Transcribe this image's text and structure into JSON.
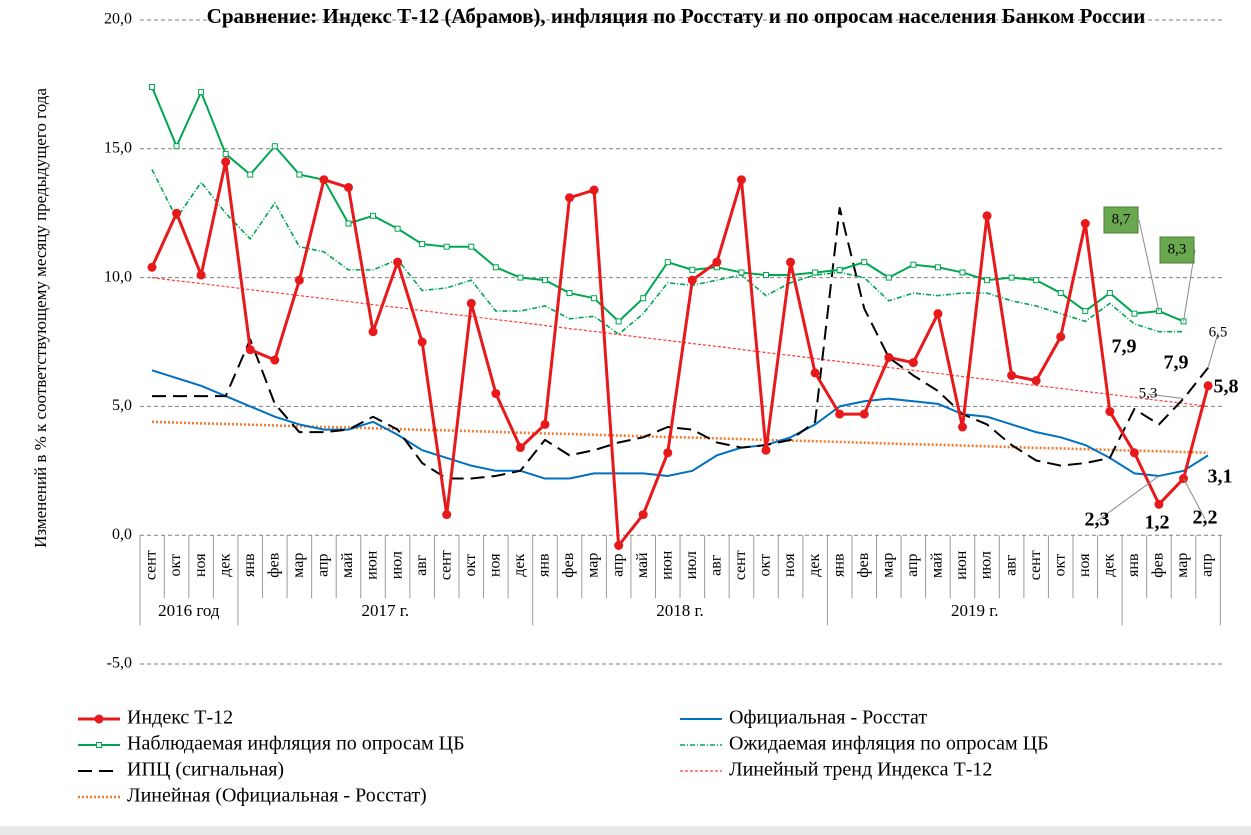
{
  "chart_data": {
    "type": "line",
    "title": "Сравнение: Индекс Т-12 (Абрамов), инфляция по Росстату и по опросам населения Банком России",
    "y_label": "Изменений в % к соответствующему месяцу предыдущего года",
    "categories": [
      "сент",
      "окт",
      "ноя",
      "дек",
      "янв",
      "фев",
      "мар",
      "апр",
      "май",
      "июн",
      "июл",
      "авг",
      "сент",
      "окт",
      "ноя",
      "дек",
      "янв",
      "фев",
      "мар",
      "апр",
      "май",
      "июн",
      "июл",
      "авг",
      "сент",
      "окт",
      "ноя",
      "дек",
      "янв",
      "фев",
      "мар",
      "апр",
      "май",
      "июн",
      "июл",
      "авг",
      "сент",
      "окт",
      "ноя",
      "дек",
      "янв",
      "фев",
      "мар",
      "апр"
    ],
    "category_groups": [
      "2016 год",
      "2016 год",
      "2016 год",
      "2016 год",
      "2017 г.",
      "2017 г.",
      "2017 г.",
      "2017 г.",
      "2017 г.",
      "2017 г.",
      "2017 г.",
      "2017 г.",
      "2017 г.",
      "2017 г.",
      "2017 г.",
      "2017 г.",
      "2018 г.",
      "2018 г.",
      "2018 г.",
      "2018 г.",
      "2018 г.",
      "2018 г.",
      "2018 г.",
      "2018 г.",
      "2018 г.",
      "2018 г.",
      "2018 г.",
      "2018 г.",
      "2019 г.",
      "2019 г.",
      "2019 г.",
      "2019 г.",
      "2019 г.",
      "2019 г.",
      "2019 г.",
      "2019 г.",
      "2019 г.",
      "2019 г.",
      "2019 г.",
      "2019 г.",
      null,
      null,
      null,
      null
    ],
    "ylim": [
      -5,
      20
    ],
    "yticks": [
      {
        "value": -5,
        "label": "-5,0"
      },
      {
        "value": 0,
        "label": "0,0"
      },
      {
        "value": 5,
        "label": "5,0"
      },
      {
        "value": 10,
        "label": "10,0"
      },
      {
        "value": 15,
        "label": "15,0"
      },
      {
        "value": 20,
        "label": "20,0"
      }
    ],
    "grid": true,
    "legend": "bottom",
    "series": [
      {
        "name": "Индекс Т-12",
        "color": "#e8191b",
        "style": "solid",
        "marker": "circle",
        "values": [
          10.4,
          12.5,
          10.1,
          14.5,
          7.2,
          6.8,
          9.9,
          13.8,
          13.5,
          7.9,
          10.6,
          7.5,
          0.8,
          9.0,
          5.5,
          3.4,
          4.3,
          13.1,
          13.4,
          -0.4,
          0.8,
          3.2,
          9.9,
          10.6,
          13.8,
          3.3,
          10.6,
          6.3,
          4.7,
          4.7,
          6.9,
          6.7,
          8.6,
          4.2,
          12.4,
          6.2,
          6.0,
          7.7,
          12.1,
          4.8,
          3.2,
          1.2,
          2.2,
          5.8
        ],
        "value_labels": [
          null,
          null,
          null,
          null,
          null,
          null,
          null,
          null,
          null,
          null,
          null,
          null,
          null,
          null,
          null,
          null,
          null,
          null,
          null,
          null,
          null,
          null,
          null,
          null,
          null,
          null,
          null,
          null,
          null,
          null,
          null,
          null,
          null,
          null,
          null,
          null,
          null,
          null,
          null,
          null,
          null,
          "1,2",
          "2,2",
          "5,8"
        ]
      },
      {
        "name": "Официальная - Росстат",
        "color": "#0070c0",
        "style": "solid",
        "marker": "none",
        "values": [
          6.4,
          6.1,
          5.8,
          5.4,
          5.0,
          4.6,
          4.3,
          4.1,
          4.1,
          4.4,
          3.9,
          3.3,
          3.0,
          2.7,
          2.5,
          2.5,
          2.2,
          2.2,
          2.4,
          2.4,
          2.4,
          2.3,
          2.5,
          3.1,
          3.4,
          3.5,
          3.8,
          4.3,
          5.0,
          5.2,
          5.3,
          5.2,
          5.1,
          4.7,
          4.6,
          4.3,
          4.0,
          3.8,
          3.5,
          3.0,
          2.4,
          2.3,
          2.5,
          3.1
        ],
        "value_labels": [
          null,
          null,
          null,
          null,
          null,
          null,
          null,
          null,
          null,
          null,
          null,
          null,
          null,
          null,
          null,
          null,
          null,
          null,
          null,
          null,
          null,
          null,
          null,
          null,
          null,
          null,
          null,
          null,
          null,
          null,
          null,
          null,
          null,
          null,
          null,
          null,
          null,
          null,
          null,
          null,
          null,
          "2,3",
          null,
          "3,1"
        ]
      },
      {
        "name": "Наблюдаемая инфляция по опросам ЦБ",
        "color": "#00a650",
        "style": "solid",
        "marker": "square",
        "values": [
          17.4,
          15.1,
          17.2,
          14.8,
          14.0,
          15.1,
          14.0,
          13.8,
          12.1,
          12.4,
          11.9,
          11.3,
          11.2,
          11.2,
          10.4,
          10.0,
          9.9,
          9.4,
          9.2,
          8.3,
          9.2,
          10.6,
          10.3,
          10.4,
          10.2,
          10.1,
          10.1,
          10.2,
          10.3,
          10.6,
          10.0,
          10.5,
          10.4,
          10.2,
          9.9,
          10.0,
          9.9,
          9.4,
          8.7,
          9.4,
          8.6,
          8.7,
          8.3,
          null
        ],
        "value_labels": [
          null,
          null,
          null,
          null,
          null,
          null,
          null,
          null,
          null,
          null,
          null,
          null,
          null,
          null,
          null,
          null,
          null,
          null,
          null,
          null,
          null,
          null,
          null,
          null,
          null,
          null,
          null,
          null,
          null,
          null,
          null,
          null,
          null,
          null,
          null,
          null,
          null,
          null,
          null,
          null,
          null,
          "8,7",
          "8,3",
          null
        ]
      },
      {
        "name": "Ожидаемая инфляция по опросам ЦБ",
        "color": "#00a650",
        "style": "dashdot",
        "marker": "none",
        "values": [
          14.2,
          12.3,
          13.7,
          12.5,
          11.5,
          12.9,
          11.2,
          11.0,
          10.3,
          10.3,
          10.7,
          9.5,
          9.6,
          9.9,
          8.7,
          8.7,
          8.9,
          8.4,
          8.5,
          7.8,
          8.6,
          9.8,
          9.7,
          9.9,
          10.1,
          9.3,
          9.8,
          10.1,
          10.2,
          10.0,
          9.1,
          9.4,
          9.3,
          9.4,
          9.4,
          9.1,
          8.9,
          8.6,
          8.3,
          9.0,
          8.2,
          7.9,
          7.9,
          null
        ],
        "value_labels": [
          null,
          null,
          null,
          null,
          null,
          null,
          null,
          null,
          null,
          null,
          null,
          null,
          null,
          null,
          null,
          null,
          null,
          null,
          null,
          null,
          null,
          null,
          null,
          null,
          null,
          null,
          null,
          null,
          null,
          null,
          null,
          null,
          null,
          null,
          null,
          null,
          null,
          null,
          null,
          null,
          null,
          "7,9",
          "7,9",
          null
        ]
      },
      {
        "name": "ИПЦ (сигнальная)",
        "color": "#000000",
        "style": "longdash",
        "marker": "none",
        "values": [
          5.4,
          5.4,
          5.4,
          5.4,
          7.6,
          5.1,
          4.0,
          4.0,
          4.1,
          4.6,
          4.1,
          2.8,
          2.2,
          2.2,
          2.3,
          2.5,
          3.7,
          3.1,
          3.3,
          3.6,
          3.8,
          4.2,
          4.1,
          3.6,
          3.4,
          3.5,
          3.7,
          4.4,
          12.7,
          8.8,
          6.9,
          6.2,
          5.6,
          4.7,
          4.3,
          3.5,
          2.9,
          2.7,
          2.8,
          3.0,
          4.9,
          4.3,
          5.3,
          6.5
        ],
        "value_labels": [
          null,
          null,
          null,
          null,
          null,
          null,
          null,
          null,
          null,
          null,
          null,
          null,
          null,
          null,
          null,
          null,
          null,
          null,
          null,
          null,
          null,
          null,
          null,
          null,
          null,
          null,
          null,
          null,
          null,
          null,
          null,
          null,
          null,
          null,
          null,
          null,
          null,
          null,
          null,
          null,
          null,
          null,
          "5,3",
          "6,5"
        ]
      },
      {
        "name": "Линейный тренд Индекса Т-12",
        "color": "#ff3b3b",
        "style": "dashed",
        "marker": "none",
        "values": [
          10.0,
          9.88,
          9.77,
          9.65,
          9.53,
          9.42,
          9.3,
          9.19,
          9.07,
          8.95,
          8.84,
          8.72,
          8.6,
          8.49,
          8.37,
          8.26,
          8.14,
          8.02,
          7.91,
          7.79,
          7.67,
          7.56,
          7.44,
          7.33,
          7.21,
          7.09,
          6.98,
          6.86,
          6.74,
          6.63,
          6.51,
          6.4,
          6.28,
          6.16,
          6.05,
          5.93,
          5.81,
          5.7,
          5.58,
          5.47,
          5.35,
          5.23,
          5.12,
          5.0
        ]
      },
      {
        "name": "Линейная (Официальная - Росстат)",
        "color": "#ed7d31",
        "style": "dotted",
        "marker": "none",
        "values": [
          4.4,
          4.37,
          4.34,
          4.32,
          4.29,
          4.26,
          4.23,
          4.2,
          4.18,
          4.15,
          4.12,
          4.09,
          4.07,
          4.04,
          4.01,
          3.98,
          3.95,
          3.93,
          3.9,
          3.87,
          3.84,
          3.81,
          3.79,
          3.76,
          3.73,
          3.7,
          3.67,
          3.65,
          3.62,
          3.59,
          3.56,
          3.53,
          3.51,
          3.48,
          3.45,
          3.42,
          3.39,
          3.37,
          3.34,
          3.31,
          3.28,
          3.26,
          3.23,
          3.2
        ]
      }
    ]
  }
}
